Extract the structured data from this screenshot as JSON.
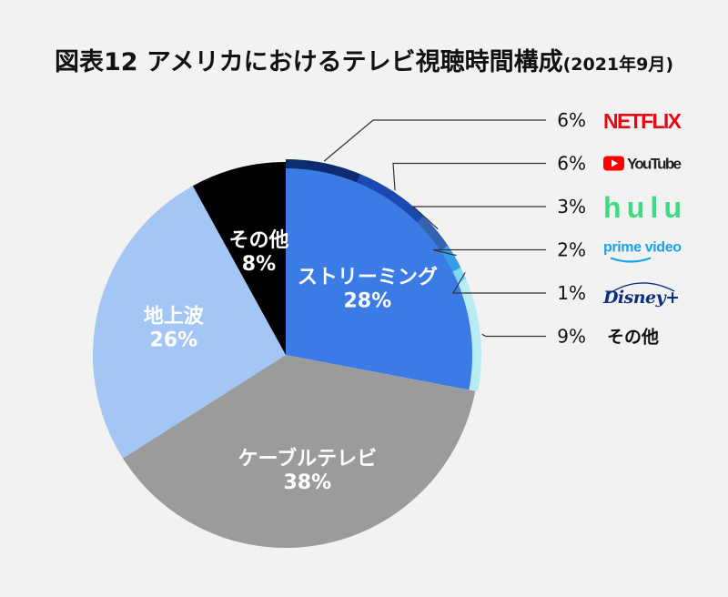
{
  "title": {
    "main": "図表12 アメリカにおけるテレビ視聴時間構成",
    "sub": "(2021年9月)"
  },
  "chart_data": {
    "type": "pie",
    "slices": [
      {
        "name": "ストリーミング",
        "value": 28,
        "label": "28%",
        "color": "#3a7be6"
      },
      {
        "name": "ケーブルテレビ",
        "value": 38,
        "label": "38%",
        "color": "#9b9b9c"
      },
      {
        "name": "地上波",
        "value": 26,
        "label": "26%",
        "color": "#a3c6f4"
      },
      {
        "name": "その他",
        "value": 8,
        "label": "8%",
        "color": "#000000"
      }
    ],
    "streaming_breakdown": [
      {
        "brand": "NETFLIX",
        "value": 6,
        "label": "6%",
        "color": "#0e2b6e",
        "logo_color": "#e50914"
      },
      {
        "brand": "YouTube",
        "value": 6,
        "label": "6%",
        "color": "#1a49b0",
        "logo_color": "#ff0000"
      },
      {
        "brand": "hulu",
        "value": 3,
        "label": "3%",
        "color": "#3562b0",
        "logo_color": "#3ddc84"
      },
      {
        "brand": "prime video",
        "value": 2,
        "label": "2%",
        "color": "#3a9ce8",
        "logo_color": "#1aa3e8"
      },
      {
        "brand": "Disney+",
        "value": 1,
        "label": "1%",
        "color": "#7fd8f4",
        "logo_color": "#0f2e7e"
      },
      {
        "brand": "その他",
        "value": 9,
        "label": "9%",
        "color": "#b8ecf2",
        "logo_color": "#111111"
      }
    ]
  }
}
